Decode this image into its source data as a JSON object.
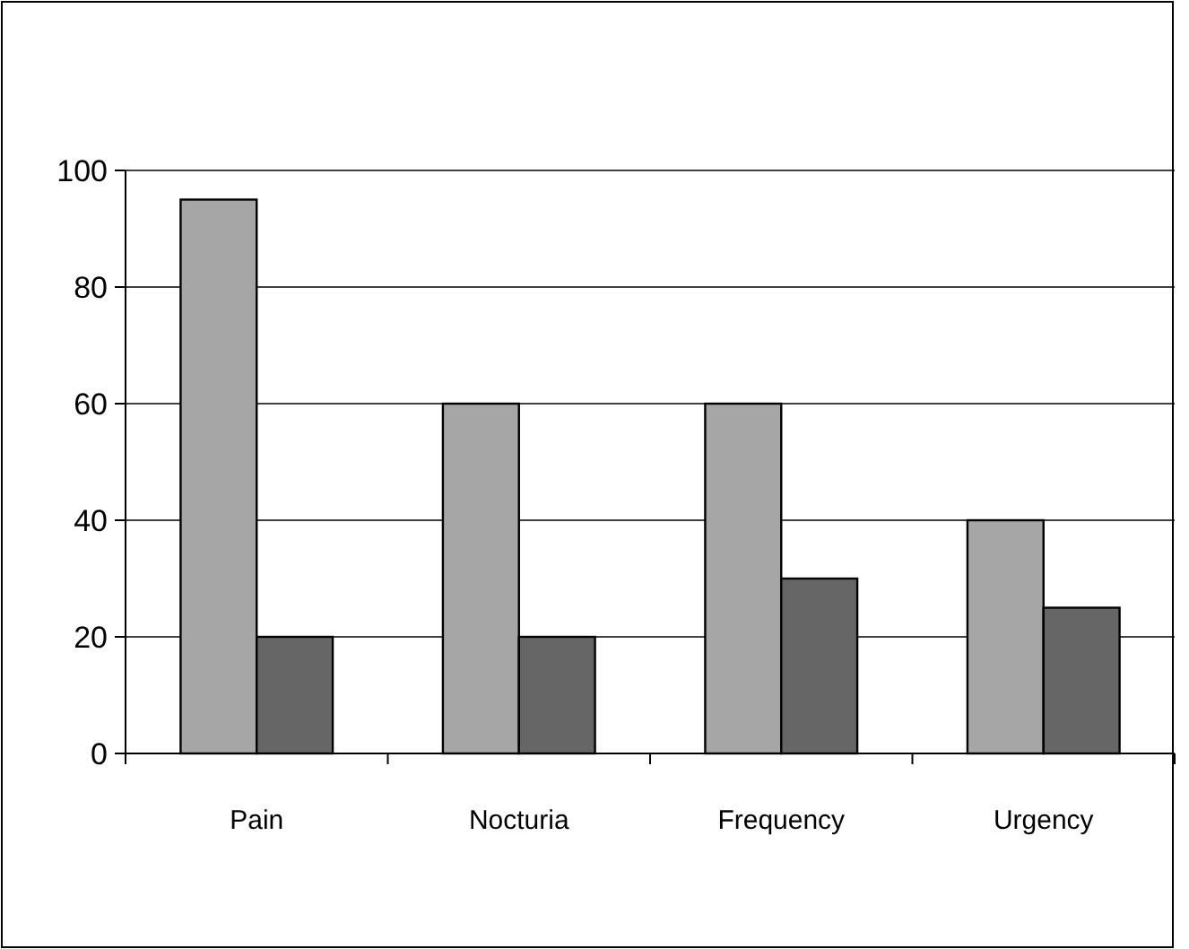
{
  "chart_data": {
    "type": "bar",
    "categories": [
      "Pain",
      "Nocturia",
      "Frequency",
      "Urgency"
    ],
    "series": [
      {
        "color": "#a6a6a6",
        "values": [
          95,
          60,
          60,
          40
        ]
      },
      {
        "color": "#666666",
        "values": [
          20,
          20,
          30,
          25
        ]
      }
    ],
    "ylim": [
      0,
      100
    ],
    "yticks": [
      0,
      20,
      40,
      60,
      80,
      100
    ],
    "grid": "y"
  }
}
